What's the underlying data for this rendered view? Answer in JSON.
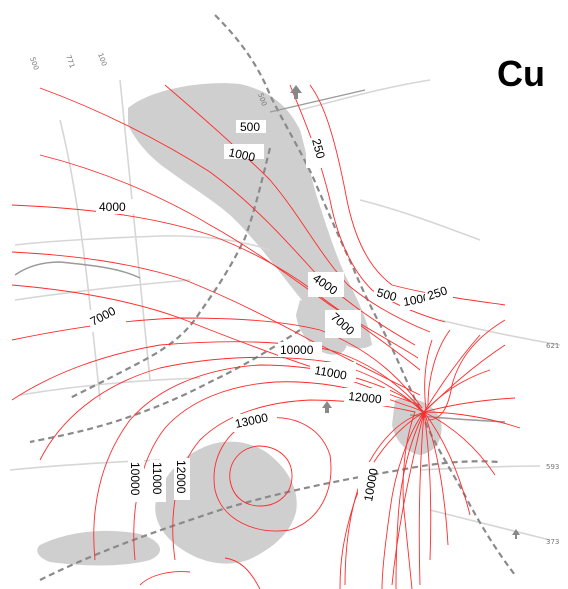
{
  "map": {
    "element": "Cu",
    "contour_color": "#ff2b2b",
    "basemap_color": "#cfcfcf",
    "road_color": "#8a8a8a",
    "contour_labels": [
      {
        "id": "c500-top",
        "text": "500"
      },
      {
        "id": "c250-top",
        "text": "250"
      },
      {
        "id": "c1000-top",
        "text": "1000"
      },
      {
        "id": "c4000-left",
        "text": "4000"
      },
      {
        "id": "c4000-mid",
        "text": "4000"
      },
      {
        "id": "c500-mid",
        "text": "500"
      },
      {
        "id": "c1000-mid",
        "text": "1000"
      },
      {
        "id": "c250-mid",
        "text": "250"
      },
      {
        "id": "c7000-left",
        "text": "7000"
      },
      {
        "id": "c7000-mid",
        "text": "7000"
      },
      {
        "id": "c10000-mid",
        "text": "10000"
      },
      {
        "id": "c11000",
        "text": "11000"
      },
      {
        "id": "c12000-mid",
        "text": "12000"
      },
      {
        "id": "c13000",
        "text": "13000"
      },
      {
        "id": "c10000-low",
        "text": "10000"
      },
      {
        "id": "c11000-low",
        "text": "11000"
      },
      {
        "id": "c12000-low",
        "text": "12000"
      },
      {
        "id": "c10000-right",
        "text": "10000"
      }
    ],
    "road_labels": [
      {
        "id": "r-tl1",
        "text": "500"
      },
      {
        "id": "r-tl2",
        "text": "771"
      },
      {
        "id": "r-tl3",
        "text": "100"
      },
      {
        "id": "r-top",
        "text": "500"
      },
      {
        "id": "r-right1",
        "text": "621"
      },
      {
        "id": "r-right2",
        "text": "593"
      },
      {
        "id": "r-right3",
        "text": "373"
      }
    ]
  }
}
